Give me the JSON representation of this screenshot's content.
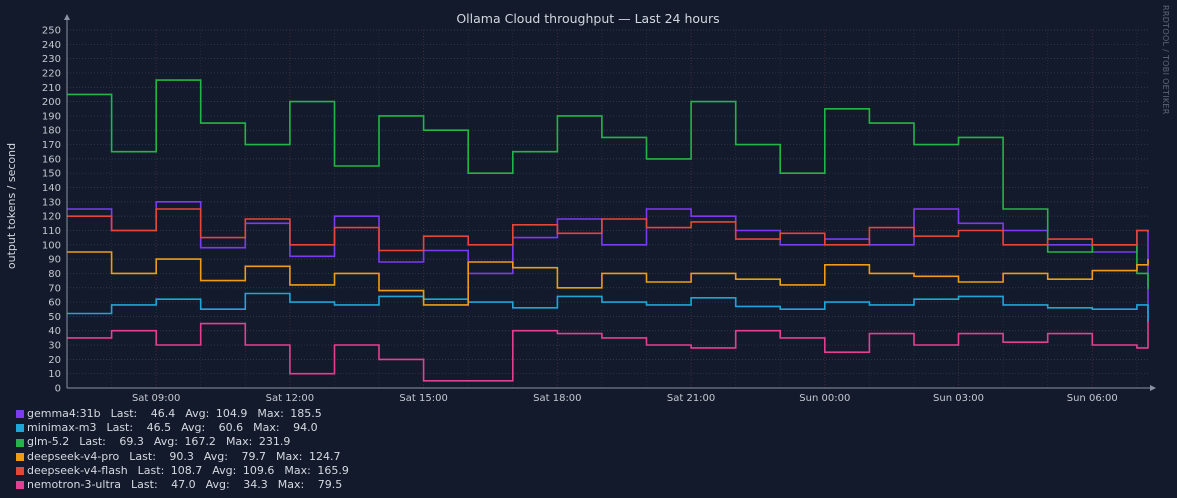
{
  "chart_data": {
    "type": "line",
    "title": "Ollama Cloud throughput — Last 24 hours",
    "ylabel": "output tokens / second",
    "watermark": "RRDTOOL / TOBI OETIKER",
    "ylim": [
      0,
      250
    ],
    "yticks": [
      0,
      10,
      20,
      30,
      40,
      50,
      60,
      70,
      80,
      90,
      100,
      110,
      120,
      130,
      140,
      150,
      160,
      170,
      180,
      190,
      200,
      210,
      220,
      230,
      240,
      250
    ],
    "xlim": [
      7.0,
      31.25
    ],
    "xticks": [
      {
        "value": 9,
        "label": "Sat 09:00"
      },
      {
        "value": 12,
        "label": "Sat 12:00"
      },
      {
        "value": 15,
        "label": "Sat 15:00"
      },
      {
        "value": 18,
        "label": "Sat 18:00"
      },
      {
        "value": 21,
        "label": "Sat 21:00"
      },
      {
        "value": 24,
        "label": "Sun 00:00"
      },
      {
        "value": 27,
        "label": "Sun 03:00"
      },
      {
        "value": 30,
        "label": "Sun 06:00"
      }
    ],
    "x_unit": "hour (Sat 00:00 = 0)",
    "grid": true,
    "legend_position": "bottom-left",
    "series": [
      {
        "name": "gemma4:31b",
        "color": "#7b3cf0",
        "last": "46.4",
        "avg": "104.9",
        "max": "185.5",
        "x": [
          7.0,
          8.0,
          9.0,
          10.0,
          11.0,
          12.0,
          13.0,
          14.0,
          15.0,
          16.0,
          17.0,
          18.0,
          19.0,
          20.0,
          21.0,
          22.0,
          23.0,
          24.0,
          25.0,
          26.0,
          27.0,
          28.0,
          29.0,
          30.0,
          31.0,
          31.25
        ],
        "y": [
          125,
          110,
          130,
          98,
          115,
          92,
          120,
          88,
          96,
          80,
          105,
          118,
          100,
          125,
          120,
          110,
          100,
          104,
          100,
          125,
          115,
          110,
          100,
          95,
          110,
          46
        ]
      },
      {
        "name": "minimax-m3",
        "color": "#1ea6d8",
        "last": "46.5",
        "avg": "60.6",
        "max": "94.0",
        "x": [
          7.0,
          8.0,
          9.0,
          10.0,
          11.0,
          12.0,
          13.0,
          14.0,
          15.0,
          16.0,
          17.0,
          18.0,
          19.0,
          20.0,
          21.0,
          22.0,
          23.0,
          24.0,
          25.0,
          26.0,
          27.0,
          28.0,
          29.0,
          30.0,
          31.0,
          31.25
        ],
        "y": [
          52,
          58,
          62,
          55,
          66,
          60,
          58,
          64,
          62,
          60,
          56,
          64,
          60,
          58,
          63,
          57,
          55,
          60,
          58,
          62,
          64,
          58,
          56,
          55,
          58,
          46
        ]
      },
      {
        "name": "glm-5.2",
        "color": "#24b54a",
        "last": "69.3",
        "avg": "167.2",
        "max": "231.9",
        "x": [
          7.0,
          8.0,
          9.0,
          10.0,
          11.0,
          12.0,
          13.0,
          14.0,
          15.0,
          16.0,
          17.0,
          18.0,
          19.0,
          20.0,
          21.0,
          22.0,
          23.0,
          24.0,
          25.0,
          26.0,
          27.0,
          28.0,
          29.0,
          30.0,
          31.0,
          31.25
        ],
        "y": [
          205,
          165,
          215,
          185,
          170,
          200,
          155,
          190,
          180,
          150,
          165,
          190,
          175,
          160,
          200,
          170,
          150,
          195,
          185,
          170,
          175,
          125,
          95,
          100,
          80,
          69
        ]
      },
      {
        "name": "deepseek-v4-pro",
        "color": "#ee9c18",
        "last": "90.3",
        "avg": "79.7",
        "max": "124.7",
        "x": [
          7.0,
          8.0,
          9.0,
          10.0,
          11.0,
          12.0,
          13.0,
          14.0,
          15.0,
          16.0,
          17.0,
          18.0,
          19.0,
          20.0,
          21.0,
          22.0,
          23.0,
          24.0,
          25.0,
          26.0,
          27.0,
          28.0,
          29.0,
          30.0,
          31.0,
          31.25
        ],
        "y": [
          95,
          80,
          90,
          75,
          85,
          72,
          80,
          68,
          58,
          88,
          84,
          70,
          80,
          74,
          80,
          76,
          72,
          86,
          80,
          78,
          74,
          80,
          76,
          82,
          86,
          90
        ]
      },
      {
        "name": "deepseek-v4-flash",
        "color": "#e4473a",
        "last": "108.7",
        "avg": "109.6",
        "max": "165.9",
        "x": [
          7.0,
          8.0,
          9.0,
          10.0,
          11.0,
          12.0,
          13.0,
          14.0,
          15.0,
          16.0,
          17.0,
          18.0,
          19.0,
          20.0,
          21.0,
          22.0,
          23.0,
          24.0,
          25.0,
          26.0,
          27.0,
          28.0,
          29.0,
          30.0,
          31.0,
          31.25
        ],
        "y": [
          120,
          110,
          125,
          105,
          118,
          100,
          112,
          96,
          106,
          100,
          114,
          108,
          118,
          112,
          116,
          104,
          108,
          100,
          112,
          106,
          110,
          100,
          104,
          100,
          110,
          108.7
        ]
      },
      {
        "name": "nemotron-3-ultra",
        "color": "#e43f92",
        "last": "47.0",
        "avg": "34.3",
        "max": "79.5",
        "x": [
          7.0,
          8.0,
          9.0,
          10.0,
          11.0,
          12.0,
          13.0,
          14.0,
          15.0,
          16.0,
          17.0,
          18.0,
          19.0,
          20.0,
          21.0,
          22.0,
          23.0,
          24.0,
          25.0,
          26.0,
          27.0,
          28.0,
          29.0,
          30.0,
          31.0,
          31.25
        ],
        "y": [
          35,
          40,
          30,
          45,
          30,
          10,
          30,
          20,
          5,
          5,
          40,
          38,
          35,
          30,
          28,
          40,
          35,
          25,
          38,
          30,
          38,
          32,
          38,
          30,
          28,
          47
        ]
      }
    ]
  },
  "legend_labels": {
    "last": "Last:",
    "avg": "Avg:",
    "max": "Max:"
  }
}
